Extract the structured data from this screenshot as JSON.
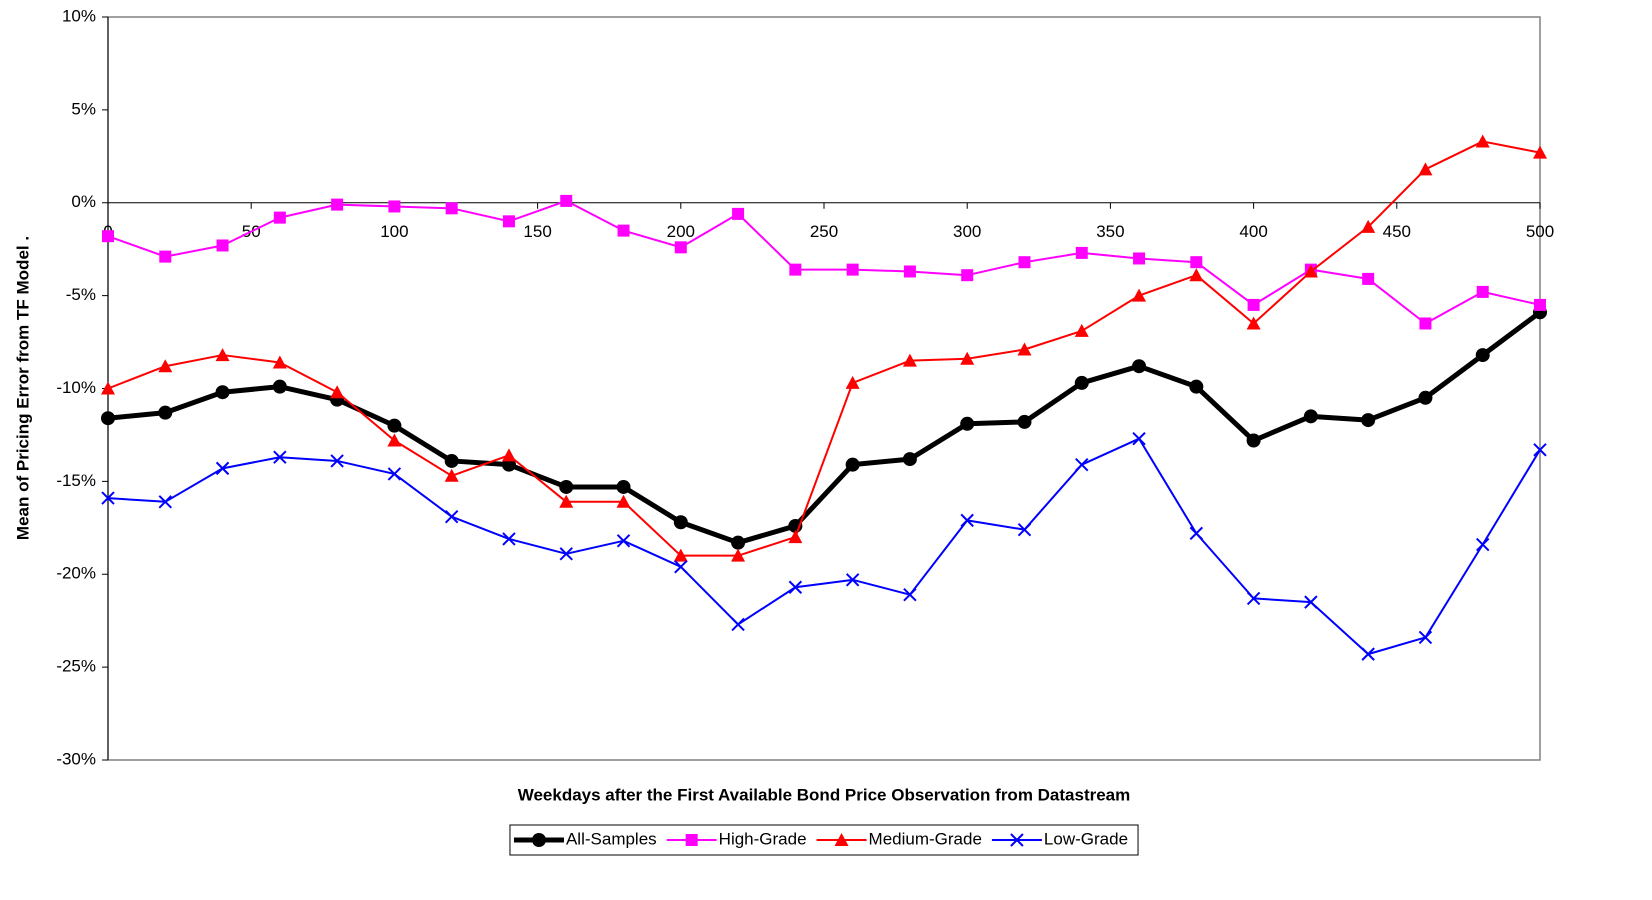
{
  "chart_data": {
    "type": "line",
    "x_label": "Weekdays after the First Available Bond Price Observation from Datastream",
    "y_label": "Mean of Pricing Error from TF Model  .",
    "x": [
      0,
      20,
      40,
      60,
      80,
      100,
      120,
      140,
      160,
      180,
      200,
      220,
      240,
      260,
      280,
      300,
      320,
      340,
      360,
      380,
      400,
      420,
      440,
      460,
      480,
      500
    ],
    "series": [
      {
        "name": "All-Samples",
        "color": "#000000",
        "marker": "circle",
        "line_width": 5,
        "values": [
          -11.6,
          -11.3,
          -10.2,
          -9.9,
          -10.6,
          -12.0,
          -13.9,
          -14.1,
          -15.3,
          -15.3,
          -17.2,
          -18.3,
          -17.4,
          -14.1,
          -13.8,
          -11.9,
          -11.8,
          -9.7,
          -8.8,
          -9.9,
          -12.8,
          -11.5,
          -11.7,
          -10.5,
          -8.2,
          -5.9
        ]
      },
      {
        "name": "High-Grade",
        "color": "#ff00ff",
        "marker": "square",
        "line_width": 2,
        "values": [
          -1.8,
          -2.9,
          -2.3,
          -0.8,
          -0.1,
          -0.2,
          -0.3,
          -1.0,
          0.1,
          -1.5,
          -2.4,
          -0.6,
          -3.6,
          -3.6,
          -3.7,
          -3.9,
          -3.2,
          -2.7,
          -3.0,
          -3.2,
          -5.5,
          -3.6,
          -4.1,
          -6.5,
          -4.8,
          -5.5
        ]
      },
      {
        "name": "Medium-Grade",
        "color": "#ff0000",
        "marker": "triangle",
        "line_width": 2,
        "values": [
          -10.0,
          -8.8,
          -8.2,
          -8.6,
          -10.2,
          -12.8,
          -14.7,
          -13.6,
          -16.1,
          -16.1,
          -19.0,
          -19.0,
          -18.0,
          -9.7,
          -8.5,
          -8.4,
          -7.9,
          -6.9,
          -5.0,
          -3.9,
          -6.5,
          -3.7,
          -1.3,
          1.8,
          3.3,
          2.7
        ]
      },
      {
        "name": "Low-Grade",
        "color": "#0000ff",
        "marker": "x",
        "line_width": 2,
        "values": [
          -15.9,
          -16.1,
          -14.3,
          -13.7,
          -13.9,
          -14.6,
          -16.9,
          -18.1,
          -18.9,
          -18.2,
          -19.6,
          -22.7,
          -20.7,
          -20.3,
          -21.1,
          -17.1,
          -17.6,
          -14.1,
          -12.7,
          -17.8,
          -21.3,
          -21.5,
          -24.3,
          -23.4,
          -18.4,
          -13.3
        ]
      }
    ],
    "xlim": [
      0,
      500
    ],
    "xticks": [
      0,
      50,
      100,
      150,
      200,
      250,
      300,
      350,
      400,
      450,
      500
    ],
    "ylim": [
      -30,
      10
    ],
    "yticks": [
      {
        "value": 10,
        "label": "10%"
      },
      {
        "value": 5,
        "label": "5%"
      },
      {
        "value": 0,
        "label": "0%"
      },
      {
        "value": -5,
        "label": "-5%"
      },
      {
        "value": -10,
        "label": "-10%"
      },
      {
        "value": -15,
        "label": "-15%"
      },
      {
        "value": -20,
        "label": "-20%"
      },
      {
        "value": -25,
        "label": "-25%"
      },
      {
        "value": -30,
        "label": "-30%"
      }
    ],
    "legend": "bottom"
  }
}
